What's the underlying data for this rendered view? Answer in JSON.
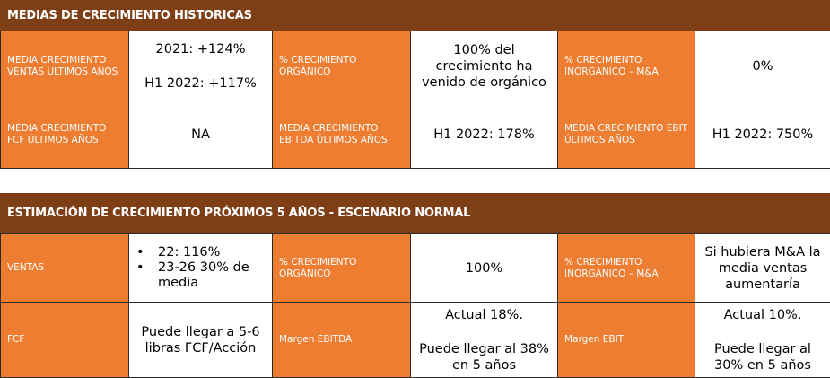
{
  "section1": {
    "title": "MEDIAS DE CRECIMIENTO HISTORICAS",
    "row1": {
      "label1": "MEDIA CRECIMIENTO VENTAS ÚLTIMOS AÑOS",
      "value1_line1": "2021: +124%",
      "value1_line2": "H1 2022: +117%",
      "label2": "% CRECIMIENTO ORGÁNICO",
      "value2": "100% del crecimiento ha venido de orgánico",
      "label3": "% CRECIMIENTO INORGÁNICO – M&A",
      "value3": "0%"
    },
    "row2": {
      "label1": "MEDIA CRECIMIENTO FCF ÚLTIMOS AÑOS",
      "value1": "NA",
      "label2": "MEDIA CRECIMIENTO EBITDA ÚLTIMOS AÑOS",
      "value2": "H1 2022: 178%",
      "label3": "MEDIA CRECIMIENTO EBIT ÚLTIMOS AÑOS",
      "value3": "H1 2022: 750%"
    }
  },
  "section2": {
    "title": "ESTIMACIÓN DE CRECIMIENTO PRÓXIMOS 5 AÑOS - ESCENARIO NORMAL",
    "row1": {
      "label1": "VENTAS",
      "bullets": [
        "22: 116%",
        "23-26 30% de media"
      ],
      "label2": "% CRECIMIENTO ORGÁNICO",
      "value2": "100%",
      "label3": "% CRECIMIENTO INORGÁNICO – M&A",
      "value3": "Si hubiera M&A la media ventas aumentaría"
    },
    "row2": {
      "label1": "FCF",
      "value1": "Puede llegar a 5-6 libras FCF/Acción",
      "label2": "Margen EBITDA",
      "value2_line1": "Actual 18%.",
      "value2_line2": "Puede llegar al 38% en 5 años",
      "label3": "Margen EBIT",
      "value3_line1": "Actual 10%.",
      "value3_line2": "Puede llegar al 30% en 5 años"
    }
  }
}
